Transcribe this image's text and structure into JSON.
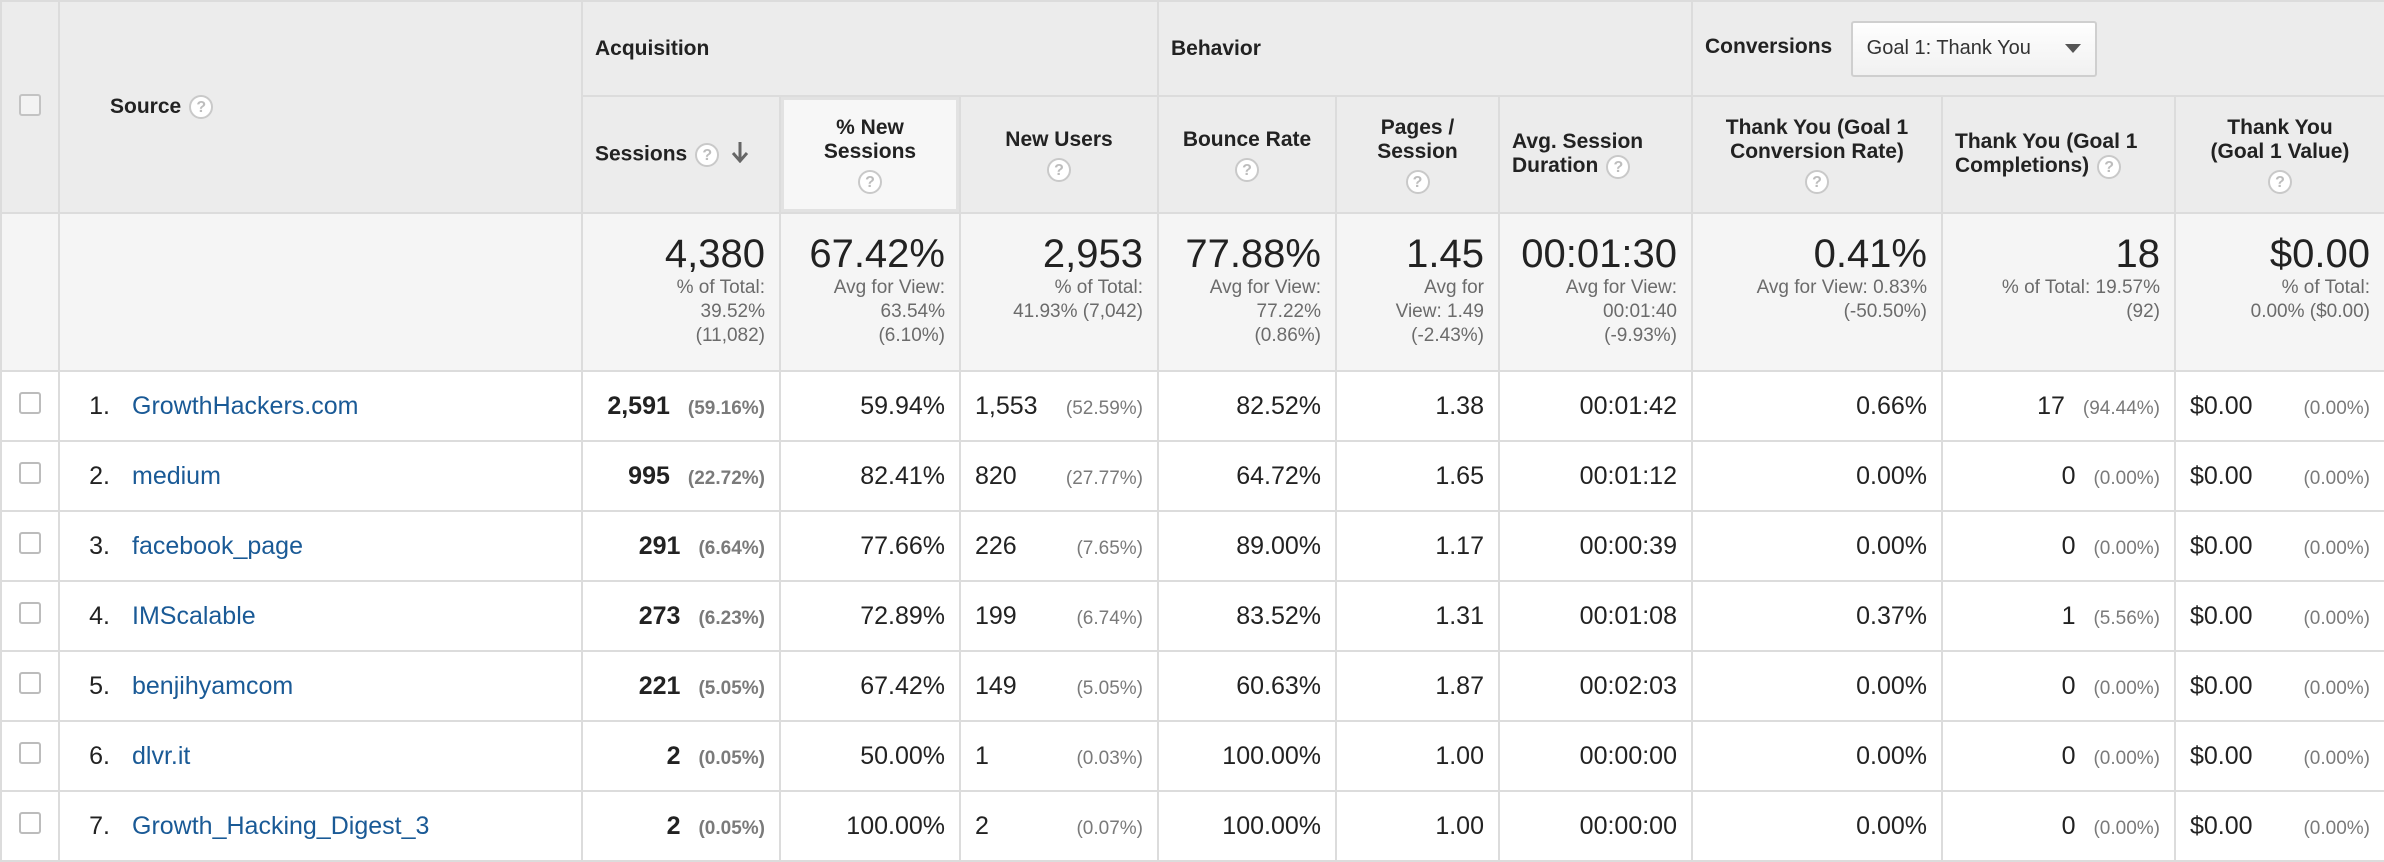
{
  "header": {
    "source_label": "Source",
    "groups": {
      "acquisition": "Acquisition",
      "behavior": "Behavior",
      "conversions": "Conversions"
    },
    "goal_dropdown": "Goal 1: Thank You",
    "columns": {
      "sessions": "Sessions",
      "new_sessions": "% New Sessions",
      "new_users": "New Users",
      "bounce_rate": "Bounce Rate",
      "pages_session": "Pages / Session",
      "avg_duration": "Avg. Session Duration",
      "conv_rate": "Thank You (Goal 1 Conversion Rate)",
      "completions": "Thank You (Goal 1 Completions)",
      "value": "Thank You (Goal 1 Value)"
    },
    "help_glyph": "?"
  },
  "totals": {
    "sessions": {
      "value": "4,380",
      "line1": "% of Total:",
      "line2": "39.52%",
      "line3": "(11,082)"
    },
    "new_sessions": {
      "value": "67.42%",
      "line1": "Avg for View:",
      "line2": "63.54%",
      "line3": "(6.10%)"
    },
    "new_users": {
      "value": "2,953",
      "line1": "% of Total:",
      "line2": "41.93% (7,042)"
    },
    "bounce_rate": {
      "value": "77.88%",
      "line1": "Avg for View:",
      "line2": "77.22%",
      "line3": "(0.86%)"
    },
    "pages_session": {
      "value": "1.45",
      "line1": "Avg for",
      "line2": "View: 1.49",
      "line3": "(-2.43%)"
    },
    "avg_duration": {
      "value": "00:01:30",
      "line1": "Avg for View:",
      "line2": "00:01:40",
      "line3": "(-9.93%)"
    },
    "conv_rate": {
      "value": "0.41%",
      "line1": "Avg for View: 0.83%",
      "line2": "(-50.50%)"
    },
    "completions": {
      "value": "18",
      "line1": "% of Total: 19.57%",
      "line2": "(92)"
    },
    "value": {
      "value": "$0.00",
      "line1": "% of Total:",
      "line2": "0.00% ($0.00)"
    }
  },
  "rows": [
    {
      "index": "1.",
      "source": "GrowthHackers.com",
      "sessions": "2,591",
      "sessions_pct": "(59.16%)",
      "new_sessions": "59.94%",
      "new_users": "1,553",
      "new_users_pct": "(52.59%)",
      "bounce_rate": "82.52%",
      "pages_session": "1.38",
      "avg_duration": "00:01:42",
      "conv_rate": "0.66%",
      "completions": "17",
      "completions_pct": "(94.44%)",
      "value": "$0.00",
      "value_pct": "(0.00%)"
    },
    {
      "index": "2.",
      "source": "medium",
      "sessions": "995",
      "sessions_pct": "(22.72%)",
      "new_sessions": "82.41%",
      "new_users": "820",
      "new_users_pct": "(27.77%)",
      "bounce_rate": "64.72%",
      "pages_session": "1.65",
      "avg_duration": "00:01:12",
      "conv_rate": "0.00%",
      "completions": "0",
      "completions_pct": "(0.00%)",
      "value": "$0.00",
      "value_pct": "(0.00%)"
    },
    {
      "index": "3.",
      "source": "facebook_page",
      "sessions": "291",
      "sessions_pct": "(6.64%)",
      "new_sessions": "77.66%",
      "new_users": "226",
      "new_users_pct": "(7.65%)",
      "bounce_rate": "89.00%",
      "pages_session": "1.17",
      "avg_duration": "00:00:39",
      "conv_rate": "0.00%",
      "completions": "0",
      "completions_pct": "(0.00%)",
      "value": "$0.00",
      "value_pct": "(0.00%)"
    },
    {
      "index": "4.",
      "source": "IMScalable",
      "sessions": "273",
      "sessions_pct": "(6.23%)",
      "new_sessions": "72.89%",
      "new_users": "199",
      "new_users_pct": "(6.74%)",
      "bounce_rate": "83.52%",
      "pages_session": "1.31",
      "avg_duration": "00:01:08",
      "conv_rate": "0.37%",
      "completions": "1",
      "completions_pct": "(5.56%)",
      "value": "$0.00",
      "value_pct": "(0.00%)"
    },
    {
      "index": "5.",
      "source": "benjihyamcom",
      "sessions": "221",
      "sessions_pct": "(5.05%)",
      "new_sessions": "67.42%",
      "new_users": "149",
      "new_users_pct": "(5.05%)",
      "bounce_rate": "60.63%",
      "pages_session": "1.87",
      "avg_duration": "00:02:03",
      "conv_rate": "0.00%",
      "completions": "0",
      "completions_pct": "(0.00%)",
      "value": "$0.00",
      "value_pct": "(0.00%)"
    },
    {
      "index": "6.",
      "source": "dlvr.it",
      "sessions": "2",
      "sessions_pct": "(0.05%)",
      "new_sessions": "50.00%",
      "new_users": "1",
      "new_users_pct": "(0.03%)",
      "bounce_rate": "100.00%",
      "pages_session": "1.00",
      "avg_duration": "00:00:00",
      "conv_rate": "0.00%",
      "completions": "0",
      "completions_pct": "(0.00%)",
      "value": "$0.00",
      "value_pct": "(0.00%)"
    },
    {
      "index": "7.",
      "source": "Growth_Hacking_Digest_3",
      "sessions": "2",
      "sessions_pct": "(0.05%)",
      "new_sessions": "100.00%",
      "new_users": "2",
      "new_users_pct": "(0.07%)",
      "bounce_rate": "100.00%",
      "pages_session": "1.00",
      "avg_duration": "00:00:00",
      "conv_rate": "0.00%",
      "completions": "0",
      "completions_pct": "(0.00%)",
      "value": "$0.00",
      "value_pct": "(0.00%)"
    }
  ]
}
